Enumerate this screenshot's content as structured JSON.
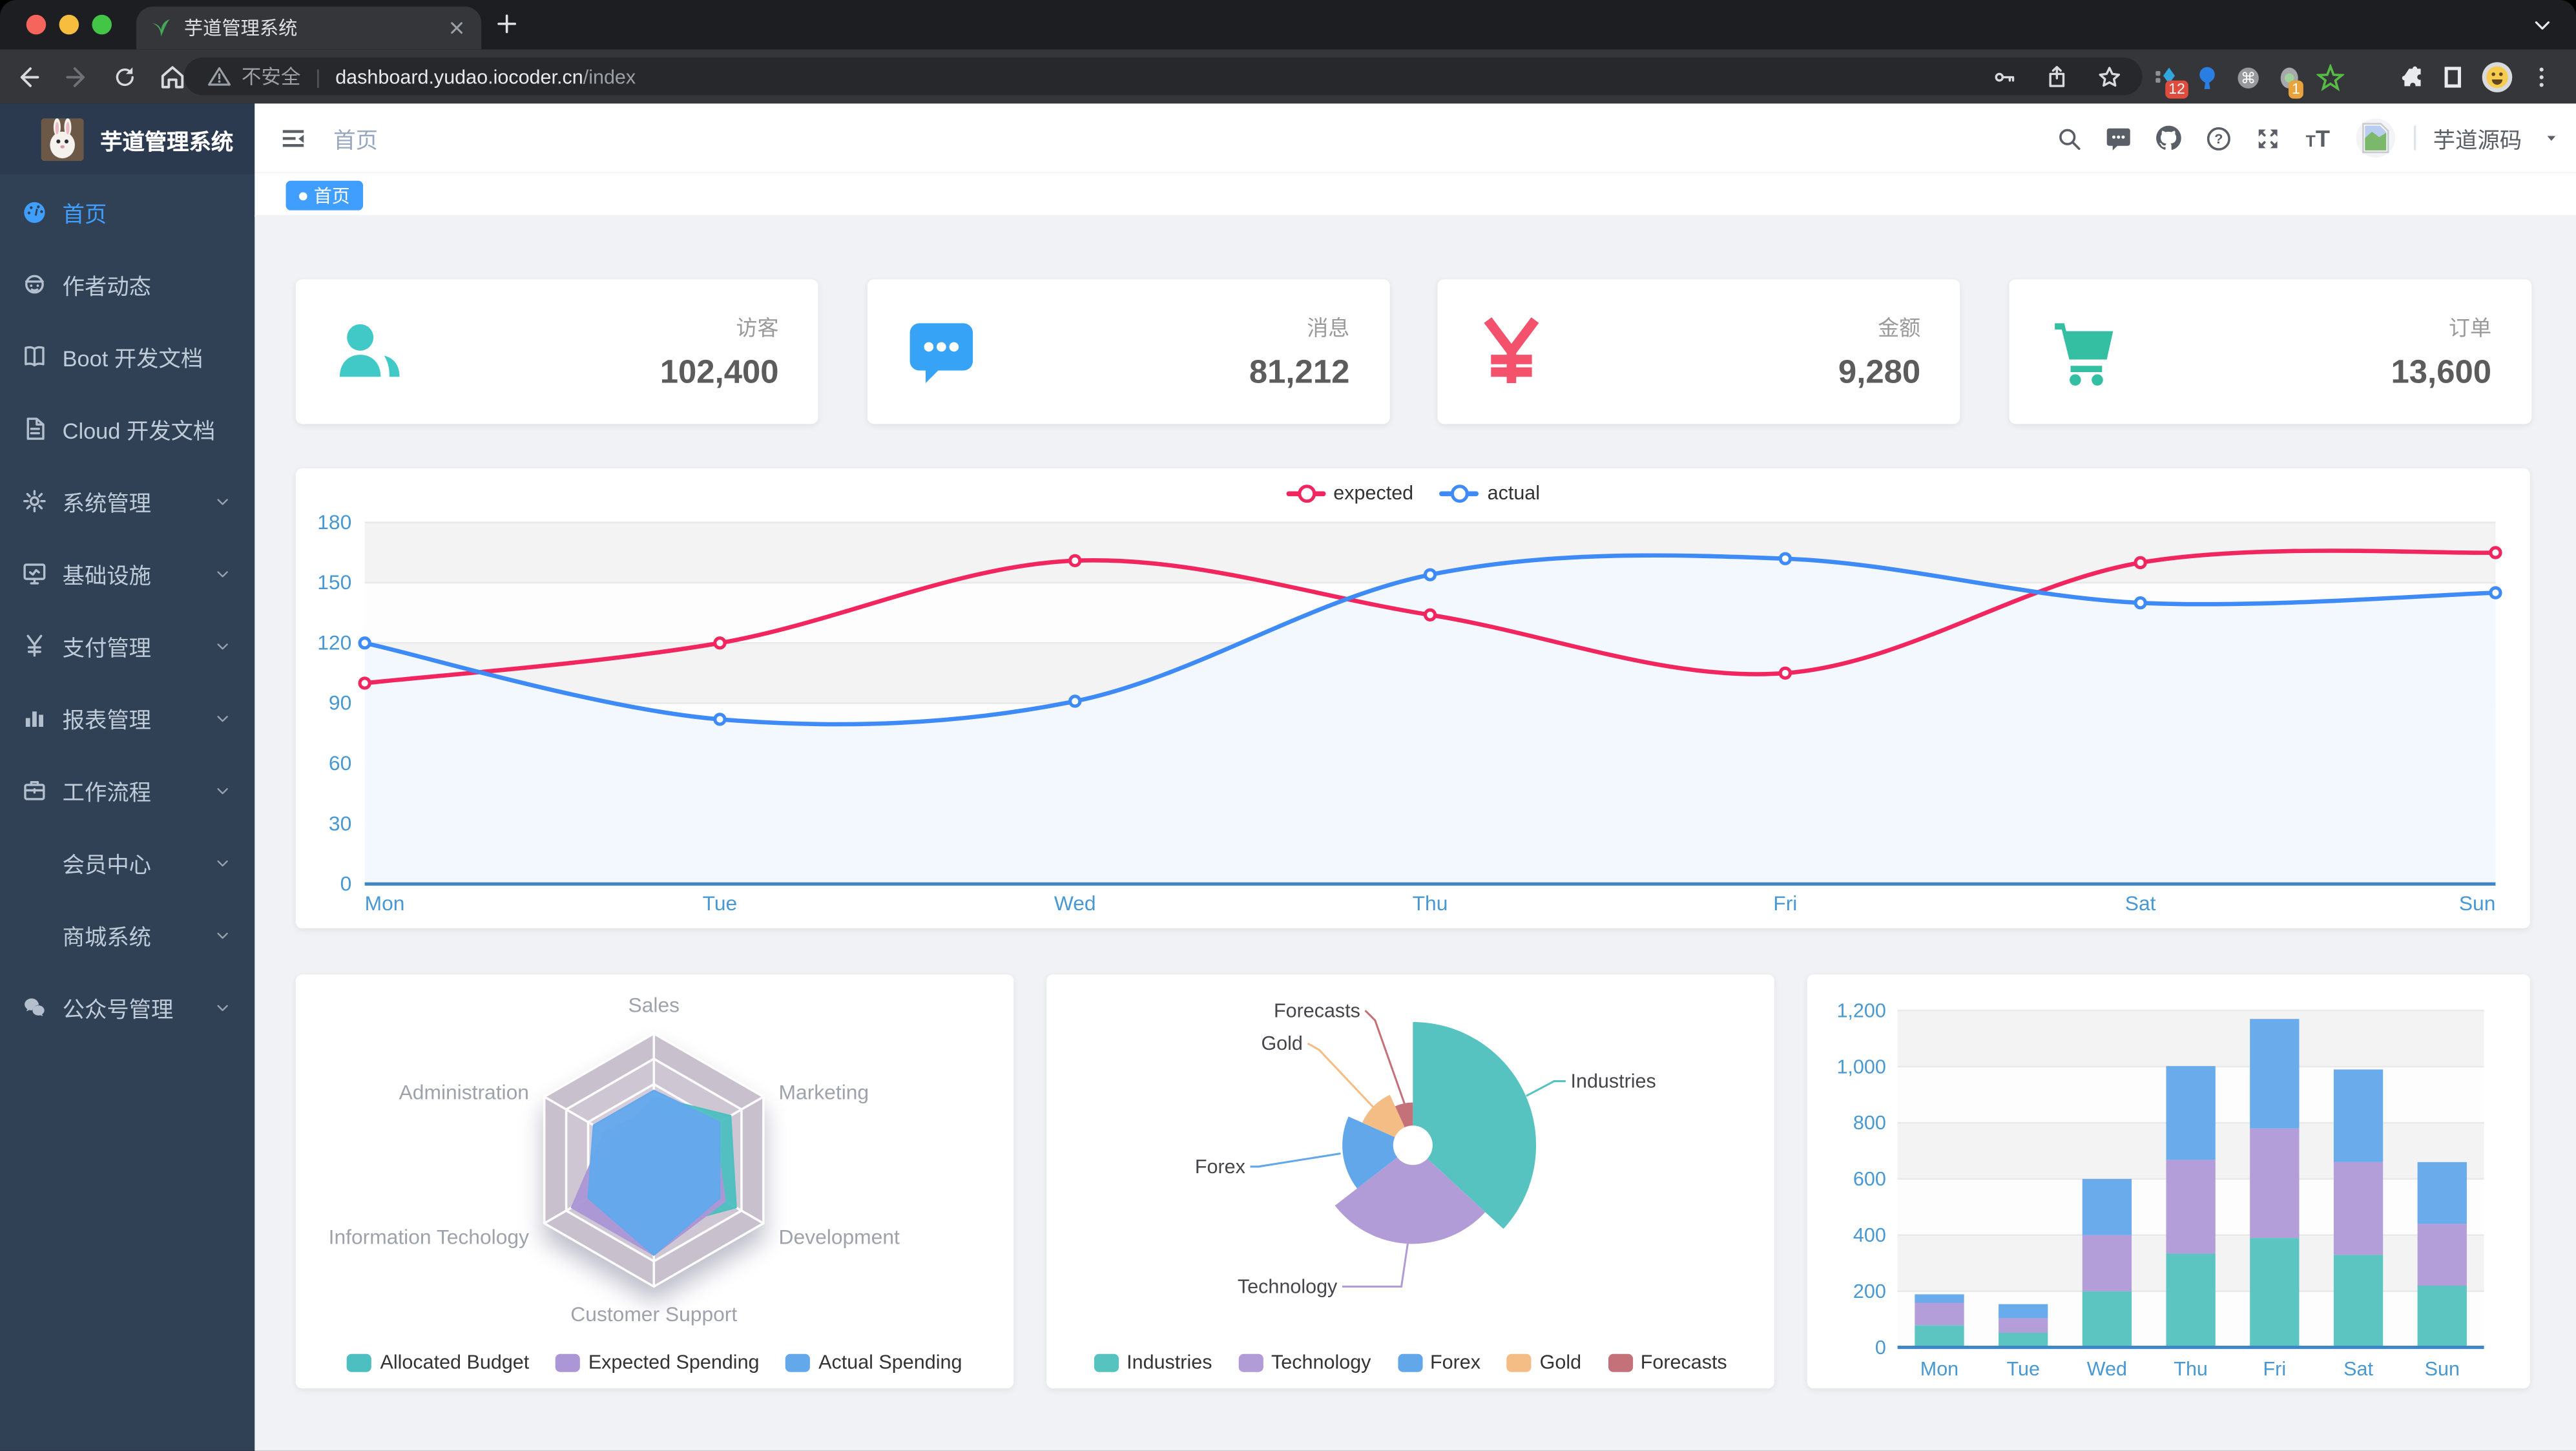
{
  "browser": {
    "tab_title": "芋道管理系统",
    "new_tab_plus": "+",
    "insecure_label": "不安全",
    "url_host": "dashboard.yudao.iocoder.cn",
    "url_path": "/index",
    "extensions": [
      {
        "icon": "ext-diamond-icon",
        "badge": "12"
      },
      {
        "icon": "ext-balloon-icon",
        "badge": ""
      },
      {
        "icon": "ext-command-icon",
        "badge": ""
      },
      {
        "icon": "ext-oval-icon",
        "badge": "1"
      },
      {
        "icon": "ext-star-icon",
        "badge": ""
      },
      {
        "icon": "ext-chevrons-icon",
        "badge": ""
      }
    ]
  },
  "sidebar": {
    "logo_title": "芋道管理系统",
    "items": [
      {
        "label": "首页",
        "icon": "dashboard-icon",
        "active": true,
        "chevron": false
      },
      {
        "label": "作者动态",
        "icon": "author-icon",
        "active": false,
        "chevron": false
      },
      {
        "label": "Boot 开发文档",
        "icon": "book-icon",
        "active": false,
        "chevron": false
      },
      {
        "label": "Cloud 开发文档",
        "icon": "doc-icon",
        "active": false,
        "chevron": false
      },
      {
        "label": "系统管理",
        "icon": "gear-icon",
        "active": false,
        "chevron": true
      },
      {
        "label": "基础设施",
        "icon": "monitor-icon",
        "active": false,
        "chevron": true
      },
      {
        "label": "支付管理",
        "icon": "yen-icon",
        "active": false,
        "chevron": true
      },
      {
        "label": "报表管理",
        "icon": "chart-bars-icon",
        "active": false,
        "chevron": true
      },
      {
        "label": "工作流程",
        "icon": "briefcase-icon",
        "active": false,
        "chevron": true
      },
      {
        "label": "会员中心",
        "icon": "",
        "active": false,
        "chevron": true
      },
      {
        "label": "商城系统",
        "icon": "",
        "active": false,
        "chevron": true
      },
      {
        "label": "公众号管理",
        "icon": "wechat-icon",
        "active": false,
        "chevron": true
      }
    ]
  },
  "header": {
    "breadcrumb": "首页",
    "username": "芋道源码"
  },
  "tags": [
    {
      "label": "首页",
      "active": true
    }
  ],
  "stat_cards": [
    {
      "title": "访客",
      "value": "102,400",
      "icon": "people-icon",
      "color": "#40c9c6"
    },
    {
      "title": "消息",
      "value": "81,212",
      "icon": "message-icon",
      "color": "#36a3f7"
    },
    {
      "title": "金额",
      "value": "9,280",
      "icon": "money-icon",
      "color": "#f4516c"
    },
    {
      "title": "订单",
      "value": "13,600",
      "icon": "cart-icon",
      "color": "#34bfa3"
    }
  ],
  "chart_data": [
    {
      "type": "line",
      "categories": [
        "Mon",
        "Tue",
        "Wed",
        "Thu",
        "Fri",
        "Sat",
        "Sun"
      ],
      "series": [
        {
          "name": "expected",
          "color": "#f2265f",
          "values": [
            100,
            120,
            161,
            134,
            105,
            160,
            165
          ]
        },
        {
          "name": "actual",
          "color": "#3e8bf7",
          "values": [
            120,
            82,
            91,
            154,
            162,
            140,
            145
          ],
          "area": "#f3f8ff"
        }
      ],
      "ylim": [
        0,
        180
      ],
      "yticks": [
        "0",
        "30",
        "60",
        "90",
        "120",
        "150",
        "180"
      ],
      "legend_position": "top",
      "grid": true
    },
    {
      "type": "radar",
      "indicators": [
        {
          "name": "Sales",
          "max": 10000
        },
        {
          "name": "Marketing",
          "max": 20000
        },
        {
          "name": "Development",
          "max": 20000
        },
        {
          "name": "Customer Support",
          "max": 20000
        },
        {
          "name": "Information Techology",
          "max": 20000
        },
        {
          "name": "Administration",
          "max": 20000
        }
      ],
      "series": [
        {
          "name": "Allocated Budget",
          "color": "#4ebfc0",
          "values": [
            5000,
            14000,
            15000,
            11000,
            12000,
            7000
          ]
        },
        {
          "name": "Expected Spending",
          "color": "#ab97d6",
          "values": [
            4000,
            11000,
            13000,
            15000,
            15000,
            9000
          ]
        },
        {
          "name": "Actual Spending",
          "color": "#64a8ec",
          "values": [
            5500,
            12000,
            12000,
            15000,
            12000,
            11000
          ]
        }
      ],
      "legend_position": "bottom"
    },
    {
      "type": "pie",
      "rose": true,
      "slices": [
        {
          "name": "Industries",
          "value": 320,
          "color": "#56c3c1"
        },
        {
          "name": "Technology",
          "value": 240,
          "color": "#b29cd8"
        },
        {
          "name": "Forex",
          "value": 149,
          "color": "#63a7eb"
        },
        {
          "name": "Gold",
          "value": 100,
          "color": "#f3bd85"
        },
        {
          "name": "Forecasts",
          "value": 59,
          "color": "#c4717a"
        }
      ],
      "legend_position": "bottom"
    },
    {
      "type": "bar",
      "stacked": true,
      "categories": [
        "Mon",
        "Tue",
        "Wed",
        "Thu",
        "Fri",
        "Sat",
        "Sun"
      ],
      "series": [
        {
          "color": "#5cc5c1",
          "values": [
            79,
            52,
            200,
            334,
            390,
            330,
            220
          ]
        },
        {
          "color": "#b49ed9",
          "values": [
            80,
            52,
            200,
            334,
            390,
            330,
            220
          ]
        },
        {
          "color": "#6aabec",
          "values": [
            30,
            50,
            200,
            334,
            390,
            330,
            220
          ]
        }
      ],
      "ylim": [
        0,
        1200
      ],
      "yticks": [
        "0",
        "200",
        "400",
        "600",
        "800",
        "1,000",
        "1,200"
      ],
      "grid": true
    }
  ]
}
